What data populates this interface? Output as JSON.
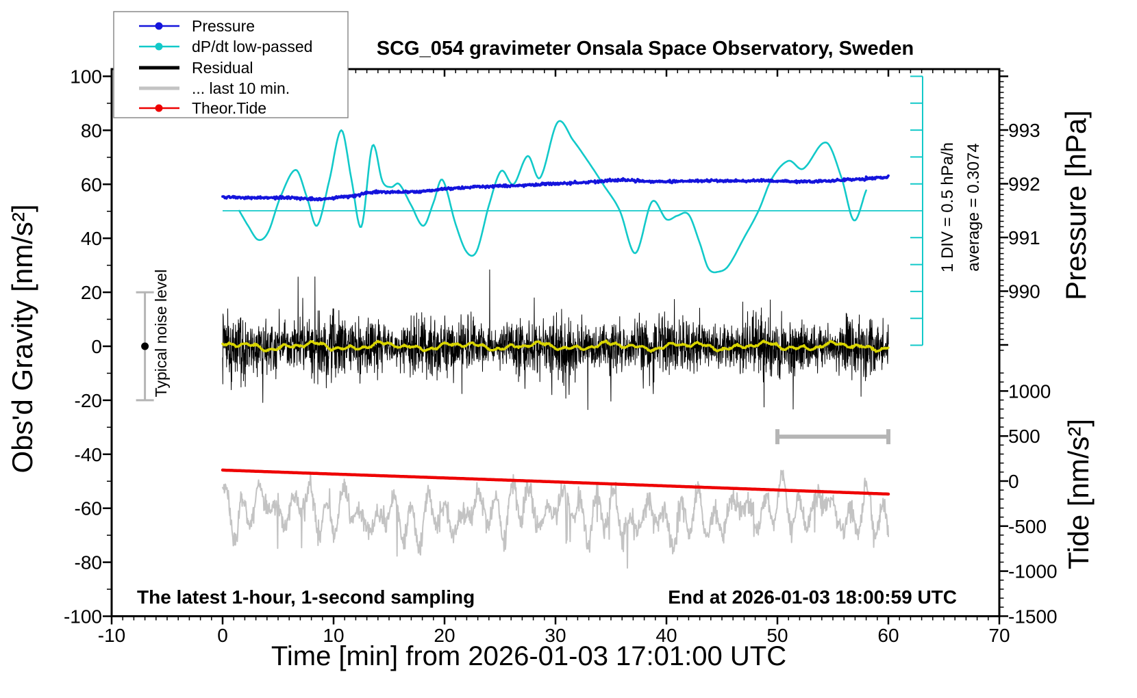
{
  "title": "SCG_054 gravimeter Onsala Space Observatory, Sweden",
  "legend": {
    "items": [
      {
        "label": "Pressure",
        "color": "#1414dc",
        "marker": "dot-line",
        "line_width": 2.5
      },
      {
        "label": "dP/dt low-passed",
        "color": "#12c9c9",
        "marker": "dot-line",
        "line_width": 2.5
      },
      {
        "label": "Residual",
        "color": "#000000",
        "marker": "line",
        "line_width": 5
      },
      {
        "label": "... last 10 min.",
        "color": "#c3c3c3",
        "marker": "line",
        "line_width": 5
      },
      {
        "label": "Theor.Tide",
        "color": "#ee0000",
        "marker": "dot-line",
        "line_width": 2.5
      }
    ]
  },
  "axes": {
    "x": {
      "label": "Time [min] from 2026-01-03 17:01:00 UTC",
      "min": -10,
      "max": 70,
      "major_step": 10,
      "minor_step": 1,
      "tick_labels": [
        "-10",
        "0",
        "10",
        "20",
        "30",
        "40",
        "50",
        "60",
        "70"
      ]
    },
    "gravity": {
      "label": "Obs'd Gravity [nm/s²]",
      "min": -100,
      "max": 100,
      "major_step": 20,
      "minor_step": 10,
      "tick_labels": [
        "-100",
        "-80",
        "-60",
        "-40",
        "-20",
        "0",
        "20",
        "40",
        "60",
        "80",
        "100"
      ]
    },
    "pressure": {
      "label": "Pressure [hPa]",
      "major_ticks": [
        990,
        991,
        992,
        993
      ],
      "minor_step": 0.1,
      "tick_labels": [
        "990",
        "991",
        "992",
        "993"
      ]
    },
    "tide": {
      "label": "Tide [nm/s²]",
      "major_ticks": [
        1000,
        500,
        0,
        -500,
        -1000,
        -1500
      ],
      "minor_step": 100,
      "tick_labels": [
        "1000",
        "500",
        "0",
        "-500",
        "-1000",
        "-1500"
      ]
    }
  },
  "annotations": {
    "div_note": "1 DIV = 0.5 hPa/h",
    "average_note": "average = 0.3074",
    "noise_label": "Typical noise level",
    "sampling_note": "The latest 1-hour, 1-second sampling",
    "end_note": "End at 2026-01-03 18:00:59 UTC"
  },
  "chart_data": {
    "type": "line",
    "x_unit": "minutes",
    "x_range": [
      -10,
      70
    ],
    "gravity_range": [
      -100,
      100
    ],
    "pressure_average_trend_hpa_per_h": 0.3074,
    "series": [
      {
        "name": "Pressure",
        "axis": "pressure",
        "unit": "hPa",
        "color": "#1414dc",
        "width": 3.8,
        "render": "spline_jitter",
        "jitter": 0.012,
        "points": [
          [
            0,
            991.75
          ],
          [
            3,
            991.74
          ],
          [
            6,
            991.74
          ],
          [
            8,
            991.72
          ],
          [
            9,
            991.72
          ],
          [
            10,
            991.74
          ],
          [
            11,
            991.76
          ],
          [
            12,
            991.78
          ],
          [
            13,
            991.83
          ],
          [
            14,
            991.85
          ],
          [
            15,
            991.84
          ],
          [
            16,
            991.84
          ],
          [
            17,
            991.85
          ],
          [
            18,
            991.86
          ],
          [
            20,
            991.9
          ],
          [
            22,
            991.93
          ],
          [
            24,
            991.95
          ],
          [
            26,
            991.96
          ],
          [
            28,
            991.98
          ],
          [
            30,
            992.0
          ],
          [
            32,
            992.02
          ],
          [
            34,
            992.04
          ],
          [
            35,
            992.06
          ],
          [
            36,
            992.07
          ],
          [
            38,
            992.05
          ],
          [
            40,
            992.04
          ],
          [
            42,
            992.05
          ],
          [
            44,
            992.06
          ],
          [
            46,
            992.05
          ],
          [
            48,
            992.06
          ],
          [
            50,
            992.05
          ],
          [
            52,
            992.04
          ],
          [
            54,
            992.05
          ],
          [
            56,
            992.07
          ],
          [
            58,
            992.09
          ],
          [
            60,
            992.13
          ]
        ]
      },
      {
        "name": "dP/dt low-passed",
        "axis": "dpdt",
        "unit": "hPa/h",
        "color": "#12c9c9",
        "width": 2.6,
        "render": "spline",
        "points": [
          [
            1.5,
            0.0
          ],
          [
            2.3,
            -0.28
          ],
          [
            3.2,
            -0.54
          ],
          [
            4.1,
            -0.4
          ],
          [
            5.2,
            0.25
          ],
          [
            6.6,
            0.76
          ],
          [
            7.6,
            0.25
          ],
          [
            8.5,
            -0.28
          ],
          [
            9.6,
            0.55
          ],
          [
            10.7,
            1.5
          ],
          [
            11.6,
            0.6
          ],
          [
            12.5,
            -0.3
          ],
          [
            13.5,
            1.21
          ],
          [
            14.4,
            0.55
          ],
          [
            15.2,
            0.44
          ],
          [
            15.9,
            0.5
          ],
          [
            17.0,
            0.1
          ],
          [
            18.1,
            -0.28
          ],
          [
            19.0,
            0.15
          ],
          [
            19.8,
            0.58
          ],
          [
            21.0,
            -0.25
          ],
          [
            22.0,
            -0.77
          ],
          [
            22.9,
            -0.75
          ],
          [
            24.0,
            0.1
          ],
          [
            25.1,
            0.74
          ],
          [
            26.2,
            0.49
          ],
          [
            27.5,
            1.02
          ],
          [
            28.6,
            0.61
          ],
          [
            30.2,
            1.65
          ],
          [
            31.6,
            1.31
          ],
          [
            33.0,
            0.9
          ],
          [
            34.3,
            0.49
          ],
          [
            35.8,
            0.0
          ],
          [
            37.2,
            -0.79
          ],
          [
            38.7,
            0.17
          ],
          [
            40.0,
            -0.16
          ],
          [
            41.0,
            -0.09
          ],
          [
            42.0,
            -0.07
          ],
          [
            43.0,
            -0.6
          ],
          [
            43.8,
            -1.08
          ],
          [
            44.8,
            -1.13
          ],
          [
            45.6,
            -1.02
          ],
          [
            47.0,
            -0.5
          ],
          [
            48.3,
            0.0
          ],
          [
            49.5,
            0.6
          ],
          [
            51.0,
            0.93
          ],
          [
            52.3,
            0.78
          ],
          [
            54.4,
            1.27
          ],
          [
            55.8,
            0.6
          ],
          [
            56.9,
            -0.18
          ],
          [
            58.0,
            0.38
          ]
        ]
      },
      {
        "name": "Residual",
        "axis": "gravity",
        "unit": "nm/s²",
        "color": "#000000",
        "width": 1,
        "render": "noise",
        "t_range": [
          0,
          60
        ],
        "params": {
          "n": 3000,
          "std": 5.0,
          "am": [
            [
              0.22,
              9.7,
              1.2
            ],
            [
              0.14,
              4.3,
              0.5
            ]
          ],
          "spike_prob": 0.007,
          "spike_min": 9,
          "spike_max": 26,
          "clamp": 28.5,
          "seed": 1234
        }
      },
      {
        "name": "Residual smoothed",
        "axis": "gravity",
        "unit": "nm/s²",
        "color": "#d8d400",
        "width": 3.5,
        "render": "sines",
        "t_range": [
          0,
          60
        ],
        "params": {
          "components": [
            [
              0.9,
              6.8,
              0.6
            ],
            [
              0.6,
              2.9,
              2.1
            ],
            [
              0.45,
              1.2,
              4.0
            ]
          ],
          "noise": 0.15,
          "t_step": 0.066,
          "seed": 77
        }
      },
      {
        "name": "... last 10 min.",
        "axis": "gravity",
        "unit": "nm/s²",
        "color": "#c3c3c3",
        "width": 2,
        "render": "last10",
        "t_range": [
          0,
          60
        ],
        "params": {
          "base": -62,
          "slow": [
            2.5,
            23,
            0.2
          ],
          "am": [
            0.65,
            0.35,
            8.3,
            1.0
          ],
          "carrier": [
            8.5,
            1.52,
            0.4
          ],
          "extra": [
            3.5,
            3.9,
            2.2
          ],
          "noise": 2.0,
          "spike_prob": 0.005,
          "spike_min": 8,
          "spike_max": 18,
          "clamp": [
            -88.5,
            -46.0
          ],
          "t_step": 0.04,
          "seed": 911
        }
      },
      {
        "name": "Theor.Tide",
        "axis": "tide",
        "unit": "nm/s²",
        "color": "#ee0000",
        "width": 4.5,
        "render": "spline",
        "points": [
          [
            0,
            122
          ],
          [
            10,
            78
          ],
          [
            20,
            35
          ],
          [
            30,
            -9
          ],
          [
            40,
            -54
          ],
          [
            50,
            -99
          ],
          [
            60,
            -144
          ]
        ]
      }
    ],
    "reference_lines": {
      "dpdt_zero": {
        "axis": "dpdt",
        "value": 0,
        "t_start": 0,
        "t_end": 63.1,
        "color": "#12c9c9"
      },
      "dpdt_scale_bar": {
        "divs": 10,
        "div_value_hpa_per_h": 0.5,
        "color": "#12c9c9"
      }
    },
    "noise_bar": {
      "t": -7,
      "g_min": -20,
      "g_max": 20,
      "dot_value": 0,
      "color": "#b5b5b5"
    },
    "duration_bar": {
      "t_start": 50,
      "t_end": 60,
      "gravity_level": -33.5,
      "color": "#b5b5b5"
    }
  }
}
